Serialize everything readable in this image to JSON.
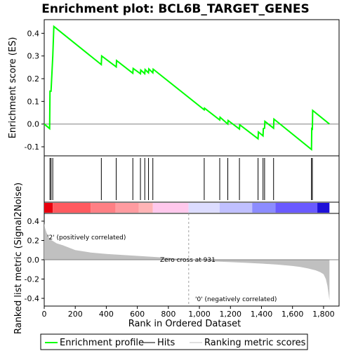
{
  "chart_data": {
    "type": "line",
    "title": "Enrichment plot: BCL6B_TARGET_GENES",
    "es_panel": {
      "ylabel": "Enrichment score (ES)",
      "ylim": [
        -0.14,
        0.46
      ],
      "yticks": [
        -0.1,
        0.0,
        0.1,
        0.2,
        0.3,
        0.4
      ],
      "ytick_labels": [
        "-0.1",
        "0.0",
        "0.1",
        "0.2",
        "0.3",
        "0.4"
      ],
      "series": [
        {
          "name": "Enrichment profile",
          "color": "#00ff00",
          "x": [
            0,
            35,
            37,
            44,
            55,
            62,
            368,
            370,
            464,
            466,
            571,
            573,
            620,
            622,
            648,
            650,
            672,
            674,
            700,
            702,
            1031,
            1033,
            1131,
            1133,
            1183,
            1185,
            1258,
            1260,
            1378,
            1380,
            1410,
            1412,
            1420,
            1422,
            1478,
            1480,
            1722,
            1724,
            1728,
            1730,
            1838
          ],
          "y": [
            0.0,
            -0.02,
            0.145,
            0.145,
            0.3,
            0.43,
            0.262,
            0.3,
            0.252,
            0.28,
            0.224,
            0.245,
            0.222,
            0.238,
            0.222,
            0.24,
            0.226,
            0.243,
            0.226,
            0.242,
            0.063,
            0.07,
            0.018,
            0.03,
            0.0,
            0.016,
            -0.022,
            -0.003,
            -0.065,
            -0.035,
            -0.052,
            -0.02,
            -0.018,
            0.012,
            -0.018,
            0.022,
            -0.112,
            -0.02,
            -0.022,
            0.06,
            0.0
          ]
        }
      ]
    },
    "hits": {
      "name": "Hits",
      "x": [
        37,
        44,
        55,
        368,
        464,
        571,
        620,
        648,
        672,
        700,
        1031,
        1131,
        1183,
        1258,
        1378,
        1410,
        1420,
        1478,
        1722,
        1728
      ]
    },
    "heatmap_bar": {
      "segments": [
        {
          "from": 0,
          "to": 55,
          "color": "#e8000e"
        },
        {
          "from": 55,
          "to": 300,
          "color": "#ff5a5f"
        },
        {
          "from": 300,
          "to": 460,
          "color": "#ff7f84"
        },
        {
          "from": 460,
          "to": 610,
          "color": "#ff9ba0"
        },
        {
          "from": 610,
          "to": 700,
          "color": "#ffb4b6"
        },
        {
          "from": 700,
          "to": 930,
          "color": "#ffc8ec"
        },
        {
          "from": 930,
          "to": 1130,
          "color": "#dcdcff"
        },
        {
          "from": 1130,
          "to": 1340,
          "color": "#c0c0ff"
        },
        {
          "from": 1340,
          "to": 1490,
          "color": "#8c8cff"
        },
        {
          "from": 1490,
          "to": 1760,
          "color": "#6a5aff"
        },
        {
          "from": 1760,
          "to": 1838,
          "color": "#1e10d8"
        }
      ]
    },
    "metric_panel": {
      "ylabel": "Ranked list metric (Signal2Noise)",
      "xlabel": "Rank in Ordered Dataset",
      "ylim": [
        -0.48,
        0.48
      ],
      "yticks": [
        -0.4,
        -0.2,
        0.0,
        0.2,
        0.4
      ],
      "ytick_labels": [
        "-0.4",
        "-0.2",
        "0.0",
        "0.2",
        "0.4"
      ],
      "xlim": [
        0,
        1900
      ],
      "xticks": [
        0,
        200,
        400,
        600,
        800,
        1000,
        1200,
        1400,
        1600,
        1800
      ],
      "xtick_labels": [
        "0",
        "200",
        "400",
        "600",
        "800",
        "1,000",
        "1,200",
        "1,400",
        "1,600",
        "1,800"
      ],
      "series": [
        {
          "name": "Ranking metric scores",
          "color": "#c0c0c0",
          "x": [
            0,
            5,
            15,
            30,
            50,
            80,
            120,
            200,
            300,
            400,
            500,
            600,
            700,
            800,
            931,
            1000,
            1100,
            1200,
            1300,
            1400,
            1500,
            1600,
            1650,
            1700,
            1750,
            1780,
            1800,
            1815,
            1825,
            1832,
            1838
          ],
          "y": [
            0.38,
            0.33,
            0.28,
            0.23,
            0.2,
            0.17,
            0.15,
            0.1,
            0.075,
            0.06,
            0.05,
            0.04,
            0.03,
            0.02,
            0.0,
            -0.008,
            -0.018,
            -0.025,
            -0.032,
            -0.04,
            -0.05,
            -0.065,
            -0.075,
            -0.09,
            -0.11,
            -0.13,
            -0.15,
            -0.2,
            -0.27,
            -0.35,
            -0.42
          ]
        }
      ],
      "zero_cross_x": 931,
      "zero_cross_label": "Zero cross at 931",
      "positive_label": "'2' (positively correlated)",
      "negative_label": "'0' (negatively correlated)",
      "positive_color": "#cc0000",
      "negative_color": "#0000cc"
    },
    "legend": {
      "placement": "bottom",
      "entries": [
        {
          "label": "Enrichment profile",
          "color": "#00ff00"
        },
        {
          "label": "Hits",
          "color": "#000000"
        },
        {
          "label": "Ranking metric scores",
          "color": "#c0c0c0"
        }
      ]
    }
  }
}
